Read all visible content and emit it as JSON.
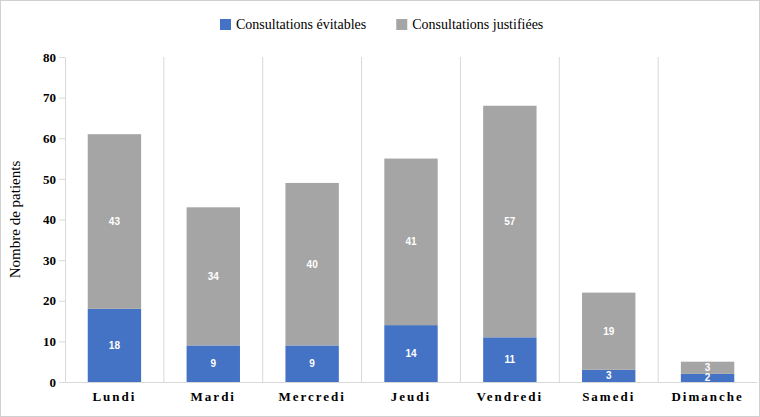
{
  "chart_data": {
    "type": "bar",
    "stacked": true,
    "data_labels": true,
    "legend": "top",
    "ylabel": "Nombre de patients",
    "categories": [
      "Lundi",
      "Mardi",
      "Mercredi",
      "Jeudi",
      "Vendredi",
      "Samedi",
      "Dimanche"
    ],
    "series": [
      {
        "name": "Consultations évitables",
        "color": "#4472c4",
        "values": [
          18,
          9,
          9,
          14,
          11,
          3,
          2
        ]
      },
      {
        "name": "Consultations justifiées",
        "color": "#a5a5a5",
        "values": [
          43,
          34,
          40,
          41,
          57,
          19,
          3
        ]
      }
    ],
    "ylim": [
      0,
      80
    ],
    "yticks": [
      0,
      10,
      20,
      30,
      40,
      50,
      60,
      70,
      80
    ]
  }
}
